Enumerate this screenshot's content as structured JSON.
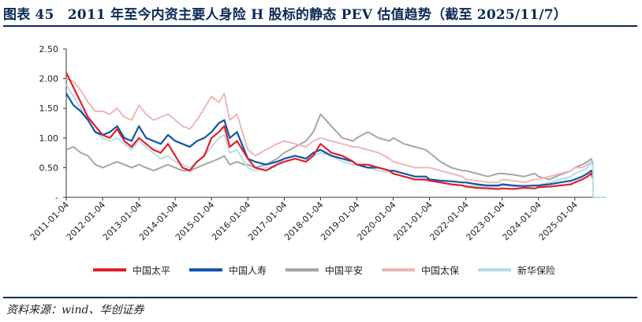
{
  "title": "图表 45　2011 年至今内资主要人身险 H 股标的静态 PEV 估值趋势（截至 2025/11/7）",
  "source": "资料来源：wind、华创证券",
  "chart_data": {
    "type": "line",
    "ylim": [
      0,
      2.5
    ],
    "yticks": [
      {
        "value": 0,
        "label": "-"
      },
      {
        "value": 0.5,
        "label": "0.50"
      },
      {
        "value": 1.0,
        "label": "1.00"
      },
      {
        "value": 1.5,
        "label": "1.50"
      },
      {
        "value": 2.0,
        "label": "2.00"
      },
      {
        "value": 2.5,
        "label": "2.50"
      }
    ],
    "xticks": [
      "2011-01-04",
      "2012-01-04",
      "2013-01-04",
      "2014-01-04",
      "2015-01-04",
      "2016-01-04",
      "2017-01-04",
      "2018-01-04",
      "2019-01-04",
      "2020-01-04",
      "2021-01-04",
      "2022-01-04",
      "2023-01-04",
      "2024-01-04",
      "2025-01-04"
    ],
    "grid": false,
    "legend_position": "bottom",
    "series": [
      {
        "name": "中国太平",
        "color": "#e0202a",
        "width": 2.2,
        "x": [
          2011.0,
          2011.2,
          2011.4,
          2011.6,
          2011.8,
          2012.0,
          2012.2,
          2012.4,
          2012.6,
          2012.8,
          2013.0,
          2013.2,
          2013.4,
          2013.6,
          2013.8,
          2014.0,
          2014.2,
          2014.4,
          2014.6,
          2014.8,
          2015.0,
          2015.2,
          2015.35,
          2015.5,
          2015.7,
          2015.9,
          2016.0,
          2016.2,
          2016.5,
          2016.8,
          2017.0,
          2017.3,
          2017.6,
          2017.8,
          2018.0,
          2018.3,
          2018.6,
          2018.9,
          2019.0,
          2019.3,
          2019.6,
          2019.9,
          2020.0,
          2020.3,
          2020.6,
          2020.9,
          2021.0,
          2021.3,
          2021.6,
          2021.9,
          2022.0,
          2022.3,
          2022.6,
          2022.9,
          2023.0,
          2023.3,
          2023.6,
          2023.9,
          2024.0,
          2024.3,
          2024.6,
          2024.9,
          2025.0,
          2025.2,
          2025.35,
          2025.45,
          2025.5
        ],
        "y": [
          2.1,
          1.85,
          1.6,
          1.35,
          1.2,
          1.05,
          1.0,
          1.15,
          0.95,
          0.85,
          1.0,
          0.9,
          0.8,
          0.75,
          0.9,
          0.7,
          0.5,
          0.45,
          0.6,
          0.7,
          1.0,
          1.1,
          1.2,
          0.85,
          0.95,
          0.75,
          0.65,
          0.5,
          0.45,
          0.55,
          0.6,
          0.65,
          0.6,
          0.7,
          0.9,
          0.75,
          0.7,
          0.6,
          0.55,
          0.55,
          0.5,
          0.45,
          0.4,
          0.35,
          0.3,
          0.3,
          0.28,
          0.25,
          0.22,
          0.2,
          0.18,
          0.16,
          0.15,
          0.14,
          0.15,
          0.14,
          0.16,
          0.15,
          0.17,
          0.18,
          0.2,
          0.22,
          0.25,
          0.3,
          0.35,
          0.4,
          0.32
        ]
      },
      {
        "name": "中国人寿",
        "color": "#1155a8",
        "width": 2.2,
        "x": [
          2011.0,
          2011.2,
          2011.4,
          2011.6,
          2011.8,
          2012.0,
          2012.2,
          2012.4,
          2012.6,
          2012.8,
          2013.0,
          2013.2,
          2013.4,
          2013.6,
          2013.8,
          2014.0,
          2014.2,
          2014.4,
          2014.6,
          2014.8,
          2015.0,
          2015.2,
          2015.35,
          2015.5,
          2015.7,
          2015.9,
          2016.0,
          2016.2,
          2016.5,
          2016.8,
          2017.0,
          2017.3,
          2017.6,
          2017.8,
          2018.0,
          2018.3,
          2018.6,
          2018.9,
          2019.0,
          2019.3,
          2019.6,
          2019.9,
          2020.0,
          2020.3,
          2020.6,
          2020.9,
          2021.0,
          2021.3,
          2021.6,
          2021.9,
          2022.0,
          2022.3,
          2022.6,
          2022.9,
          2023.0,
          2023.3,
          2023.6,
          2023.9,
          2024.0,
          2024.3,
          2024.6,
          2024.9,
          2025.0,
          2025.2,
          2025.35,
          2025.45,
          2025.5
        ],
        "y": [
          1.75,
          1.55,
          1.45,
          1.3,
          1.1,
          1.05,
          1.1,
          1.2,
          1.0,
          0.95,
          1.2,
          1.0,
          0.95,
          0.9,
          1.05,
          0.95,
          0.9,
          0.85,
          0.95,
          1.0,
          1.1,
          1.25,
          1.3,
          1.0,
          1.1,
          0.8,
          0.65,
          0.6,
          0.55,
          0.6,
          0.65,
          0.7,
          0.65,
          0.75,
          0.8,
          0.7,
          0.65,
          0.6,
          0.55,
          0.5,
          0.5,
          0.45,
          0.45,
          0.4,
          0.35,
          0.35,
          0.3,
          0.28,
          0.27,
          0.25,
          0.25,
          0.22,
          0.2,
          0.2,
          0.22,
          0.2,
          0.19,
          0.2,
          0.2,
          0.22,
          0.25,
          0.28,
          0.3,
          0.35,
          0.4,
          0.45,
          0.4
        ]
      },
      {
        "name": "中国平安",
        "color": "#a6a6a6",
        "width": 2.0,
        "x": [
          2011.0,
          2011.2,
          2011.4,
          2011.6,
          2011.8,
          2012.0,
          2012.2,
          2012.4,
          2012.6,
          2012.8,
          2013.0,
          2013.2,
          2013.4,
          2013.6,
          2013.8,
          2014.0,
          2014.2,
          2014.4,
          2014.6,
          2014.8,
          2015.0,
          2015.2,
          2015.35,
          2015.5,
          2015.7,
          2015.9,
          2016.0,
          2016.2,
          2016.5,
          2016.8,
          2017.0,
          2017.3,
          2017.6,
          2017.8,
          2018.0,
          2018.3,
          2018.6,
          2018.9,
          2019.0,
          2019.3,
          2019.6,
          2019.9,
          2020.0,
          2020.3,
          2020.6,
          2020.9,
          2021.0,
          2021.3,
          2021.6,
          2021.9,
          2022.0,
          2022.3,
          2022.6,
          2022.9,
          2023.0,
          2023.3,
          2023.6,
          2023.9,
          2024.0,
          2024.3,
          2024.6,
          2024.9,
          2025.0,
          2025.2,
          2025.35,
          2025.45,
          2025.5
        ],
        "y": [
          0.8,
          0.85,
          0.75,
          0.7,
          0.55,
          0.5,
          0.55,
          0.6,
          0.55,
          0.5,
          0.55,
          0.5,
          0.45,
          0.5,
          0.55,
          0.5,
          0.45,
          0.45,
          0.5,
          0.55,
          0.6,
          0.65,
          0.7,
          0.55,
          0.6,
          0.55,
          0.55,
          0.5,
          0.55,
          0.65,
          0.75,
          0.85,
          0.95,
          1.1,
          1.4,
          1.2,
          1.0,
          0.95,
          1.0,
          1.1,
          1.0,
          0.95,
          1.0,
          0.9,
          0.85,
          0.8,
          0.75,
          0.6,
          0.5,
          0.45,
          0.45,
          0.4,
          0.35,
          0.4,
          0.4,
          0.38,
          0.35,
          0.4,
          0.35,
          0.3,
          0.38,
          0.45,
          0.5,
          0.55,
          0.6,
          0.65,
          0.55
        ]
      },
      {
        "name": "中国太保",
        "color": "#eeb7b9",
        "width": 2.0,
        "x": [
          2011.0,
          2011.2,
          2011.4,
          2011.6,
          2011.8,
          2012.0,
          2012.2,
          2012.4,
          2012.6,
          2012.8,
          2013.0,
          2013.2,
          2013.4,
          2013.6,
          2013.8,
          2014.0,
          2014.2,
          2014.4,
          2014.6,
          2014.8,
          2015.0,
          2015.2,
          2015.35,
          2015.5,
          2015.7,
          2015.9,
          2016.0,
          2016.2,
          2016.5,
          2016.8,
          2017.0,
          2017.3,
          2017.6,
          2017.8,
          2018.0,
          2018.3,
          2018.6,
          2018.9,
          2019.0,
          2019.3,
          2019.6,
          2019.9,
          2020.0,
          2020.3,
          2020.6,
          2020.9,
          2021.0,
          2021.3,
          2021.6,
          2021.9,
          2022.0,
          2022.3,
          2022.6,
          2022.9,
          2023.0,
          2023.3,
          2023.6,
          2023.9,
          2024.0,
          2024.3,
          2024.6,
          2024.9,
          2025.0,
          2025.2,
          2025.35,
          2025.45,
          2025.5
        ],
        "y": [
          2.0,
          1.95,
          1.8,
          1.6,
          1.45,
          1.45,
          1.4,
          1.5,
          1.35,
          1.3,
          1.55,
          1.4,
          1.3,
          1.35,
          1.4,
          1.3,
          1.2,
          1.15,
          1.3,
          1.5,
          1.7,
          1.6,
          1.75,
          1.3,
          1.4,
          1.0,
          0.8,
          0.7,
          0.8,
          0.9,
          0.95,
          0.9,
          0.85,
          0.95,
          1.0,
          0.95,
          0.9,
          0.85,
          0.85,
          0.8,
          0.75,
          0.65,
          0.6,
          0.55,
          0.5,
          0.5,
          0.5,
          0.45,
          0.4,
          0.35,
          0.3,
          0.28,
          0.25,
          0.25,
          0.3,
          0.28,
          0.25,
          0.3,
          0.3,
          0.35,
          0.4,
          0.45,
          0.5,
          0.5,
          0.55,
          0.6,
          0.5
        ]
      },
      {
        "name": "新华保险",
        "color": "#b7dde8",
        "width": 2.0,
        "x": [
          2011.0,
          2011.2,
          2011.4,
          2011.6,
          2011.8,
          2012.0,
          2012.2,
          2012.4,
          2012.6,
          2012.8,
          2013.0,
          2013.2,
          2013.4,
          2013.6,
          2013.8,
          2014.0,
          2014.2,
          2014.4,
          2014.6,
          2014.8,
          2015.0,
          2015.2,
          2015.35,
          2015.5,
          2015.7,
          2015.9,
          2016.0,
          2016.2,
          2016.5,
          2016.8,
          2017.0,
          2017.3,
          2017.6,
          2017.8,
          2018.0,
          2018.3,
          2018.6,
          2018.9,
          2019.0,
          2019.3,
          2019.6,
          2019.9,
          2020.0,
          2020.3,
          2020.6,
          2020.9,
          2021.0,
          2021.3,
          2021.6,
          2021.9,
          2022.0,
          2022.3,
          2022.6,
          2022.9,
          2023.0,
          2023.3,
          2023.6,
          2023.9,
          2024.0,
          2024.3,
          2024.6,
          2024.9,
          2025.0,
          2025.2,
          2025.35,
          2025.45,
          2025.5
        ],
        "y": [
          1.9,
          1.7,
          1.5,
          1.3,
          1.1,
          1.0,
          0.95,
          1.0,
          0.9,
          0.8,
          0.95,
          0.85,
          0.75,
          0.65,
          0.7,
          0.6,
          0.55,
          0.5,
          0.6,
          0.7,
          0.85,
          1.0,
          1.05,
          0.75,
          0.8,
          0.6,
          0.5,
          0.45,
          0.5,
          0.55,
          0.65,
          0.7,
          0.65,
          0.7,
          0.75,
          0.7,
          0.6,
          0.55,
          0.55,
          0.5,
          0.45,
          0.42,
          0.4,
          0.35,
          0.3,
          0.28,
          0.28,
          0.25,
          0.22,
          0.2,
          0.2,
          0.19,
          0.18,
          0.18,
          0.2,
          0.19,
          0.18,
          0.2,
          0.2,
          0.25,
          0.3,
          0.35,
          0.4,
          0.45,
          0.5,
          0.6,
          0.5
        ]
      }
    ]
  }
}
